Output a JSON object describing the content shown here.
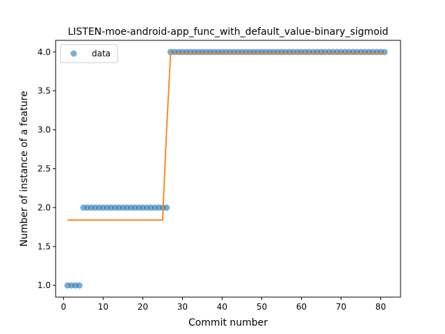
{
  "chart_data": {
    "type": "scatter",
    "title": "LISTEN-moe-android-app_func_with_default_value-binary_sigmoid",
    "xlabel": "Commit number",
    "ylabel": "Number of instance of a feature",
    "xlim": [
      -2.0,
      85.0
    ],
    "ylim": [
      0.85,
      4.15
    ],
    "xticks": [
      0,
      10,
      20,
      30,
      40,
      50,
      60,
      70,
      80
    ],
    "yticks": [
      1.0,
      1.5,
      2.0,
      2.5,
      3.0,
      3.5,
      4.0
    ],
    "ytick_labels": [
      "1.0",
      "1.5",
      "2.0",
      "2.5",
      "3.0",
      "3.5",
      "4.0"
    ],
    "grid": false,
    "legend": {
      "position": "top-left",
      "entries": [
        "data"
      ]
    },
    "series": [
      {
        "name": "data",
        "kind": "scatter",
        "color": "#1f77b4",
        "x": [
          1,
          2,
          3,
          4,
          5,
          6,
          7,
          8,
          9,
          10,
          11,
          12,
          13,
          14,
          15,
          16,
          17,
          18,
          19,
          20,
          21,
          22,
          23,
          24,
          25,
          26,
          27,
          28,
          29,
          30,
          31,
          32,
          33,
          34,
          35,
          36,
          37,
          38,
          39,
          40,
          41,
          42,
          43,
          44,
          45,
          46,
          47,
          48,
          49,
          50,
          51,
          52,
          53,
          54,
          55,
          56,
          57,
          58,
          59,
          60,
          61,
          62,
          63,
          64,
          65,
          66,
          67,
          68,
          69,
          70,
          71,
          72,
          73,
          74,
          75,
          76,
          77,
          78,
          79,
          80,
          81
        ],
        "y": [
          1,
          1,
          1,
          1,
          2,
          2,
          2,
          2,
          2,
          2,
          2,
          2,
          2,
          2,
          2,
          2,
          2,
          2,
          2,
          2,
          2,
          2,
          2,
          2,
          2,
          2,
          4,
          4,
          4,
          4,
          4,
          4,
          4,
          4,
          4,
          4,
          4,
          4,
          4,
          4,
          4,
          4,
          4,
          4,
          4,
          4,
          4,
          4,
          4,
          4,
          4,
          4,
          4,
          4,
          4,
          4,
          4,
          4,
          4,
          4,
          4,
          4,
          4,
          4,
          4,
          4,
          4,
          4,
          4,
          4,
          4,
          4,
          4,
          4,
          4,
          4,
          4,
          4,
          4,
          4,
          4
        ]
      },
      {
        "kind": "line",
        "color": "#ff7f0e",
        "x": [
          1,
          25,
          26,
          27,
          81
        ],
        "y": [
          1.84,
          1.84,
          3.0,
          3.98,
          3.98
        ]
      }
    ]
  }
}
